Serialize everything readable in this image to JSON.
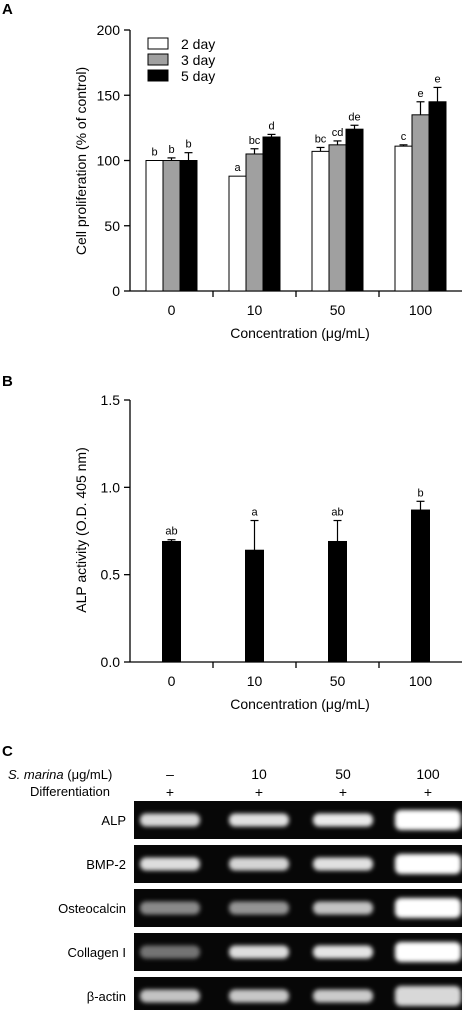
{
  "panels": {
    "a": "A",
    "b": "B",
    "c": "C"
  },
  "chart_data": [
    {
      "type": "bar",
      "panel": "A",
      "xlabel": "Concentration (μg/mL)",
      "ylabel": "Cell proliferation (% of control)",
      "ylim": [
        0,
        200
      ],
      "yticks": [
        "0",
        "50",
        "100",
        "150",
        "200"
      ],
      "categories": [
        "0",
        "10",
        "50",
        "100"
      ],
      "legend_position": "top-left",
      "grid": false,
      "series": [
        {
          "name": "2 day",
          "color": "#ffffff",
          "values": [
            100,
            88,
            107,
            111
          ],
          "errors": [
            0,
            0,
            3,
            1
          ],
          "labels": [
            "b",
            "a",
            "bc",
            "c"
          ]
        },
        {
          "name": "3 day",
          "color": "#a0a0a0",
          "values": [
            100,
            105,
            112,
            135
          ],
          "errors": [
            2,
            4,
            3,
            10
          ],
          "labels": [
            "b",
            "bc",
            "cd",
            "e"
          ]
        },
        {
          "name": "5 day",
          "color": "#000000",
          "values": [
            100,
            118,
            124,
            145
          ],
          "errors": [
            6,
            2,
            3,
            11
          ],
          "labels": [
            "b",
            "d",
            "de",
            "e"
          ]
        }
      ]
    },
    {
      "type": "bar",
      "panel": "B",
      "xlabel": "Concentration (μg/mL)",
      "ylabel": "ALP activity (O.D. 405 nm)",
      "ylim": [
        0,
        1.5
      ],
      "yticks": [
        "0.0",
        "0.5",
        "1.0",
        "1.5"
      ],
      "categories": [
        "0",
        "10",
        "50",
        "100"
      ],
      "grid": false,
      "series": [
        {
          "color": "#000000",
          "values": [
            0.69,
            0.64,
            0.69,
            0.87
          ],
          "errors": [
            0.01,
            0.17,
            0.12,
            0.05
          ],
          "labels": [
            "ab",
            "a",
            "ab",
            "b"
          ]
        }
      ]
    }
  ],
  "gel": {
    "header_label_prefix": "S. marina",
    "header_label_suffix": " (μg/mL)",
    "concentrations": [
      "–",
      "10",
      "50",
      "100"
    ],
    "differentiation_label": "Differentiation",
    "differentiation_marks": [
      "+",
      "+",
      "+",
      "+"
    ],
    "rows": [
      {
        "label": "ALP",
        "intensities": [
          0.82,
          0.86,
          0.9,
          1.0
        ]
      },
      {
        "label": "BMP-2",
        "intensities": [
          0.84,
          0.8,
          0.86,
          1.0
        ]
      },
      {
        "label": "Osteocalcin",
        "intensities": [
          0.45,
          0.5,
          0.72,
          1.0
        ]
      },
      {
        "label": "Collagen I",
        "intensities": [
          0.35,
          0.84,
          0.88,
          1.0
        ]
      },
      {
        "label": "β-actin",
        "intensities": [
          0.72,
          0.74,
          0.76,
          0.82
        ]
      }
    ]
  }
}
